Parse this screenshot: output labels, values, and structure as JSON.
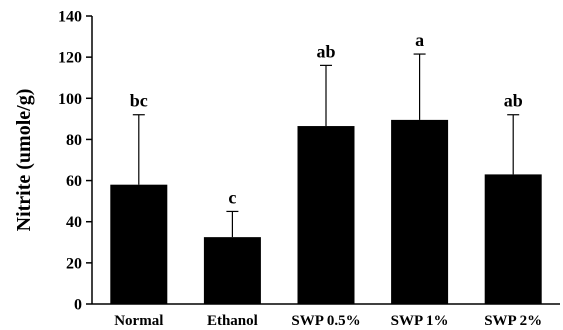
{
  "chart_data": {
    "type": "bar",
    "ylabel": "Nitrite (umole/g)",
    "xlabel": "",
    "ylim": [
      0,
      140
    ],
    "yticks": [
      0,
      20,
      40,
      60,
      80,
      100,
      120,
      140
    ],
    "grid": false,
    "categories": [
      "Normal",
      "Ethanol",
      "SWP 0.5%",
      "SWP 1%",
      "SWP 2%"
    ],
    "values": [
      58,
      32.5,
      86.5,
      89.5,
      63
    ],
    "error_upper": [
      34,
      12.5,
      29.5,
      32,
      29
    ],
    "significance": [
      "bc",
      "c",
      "ab",
      "a",
      "ab"
    ],
    "bar_color": "#000000"
  }
}
